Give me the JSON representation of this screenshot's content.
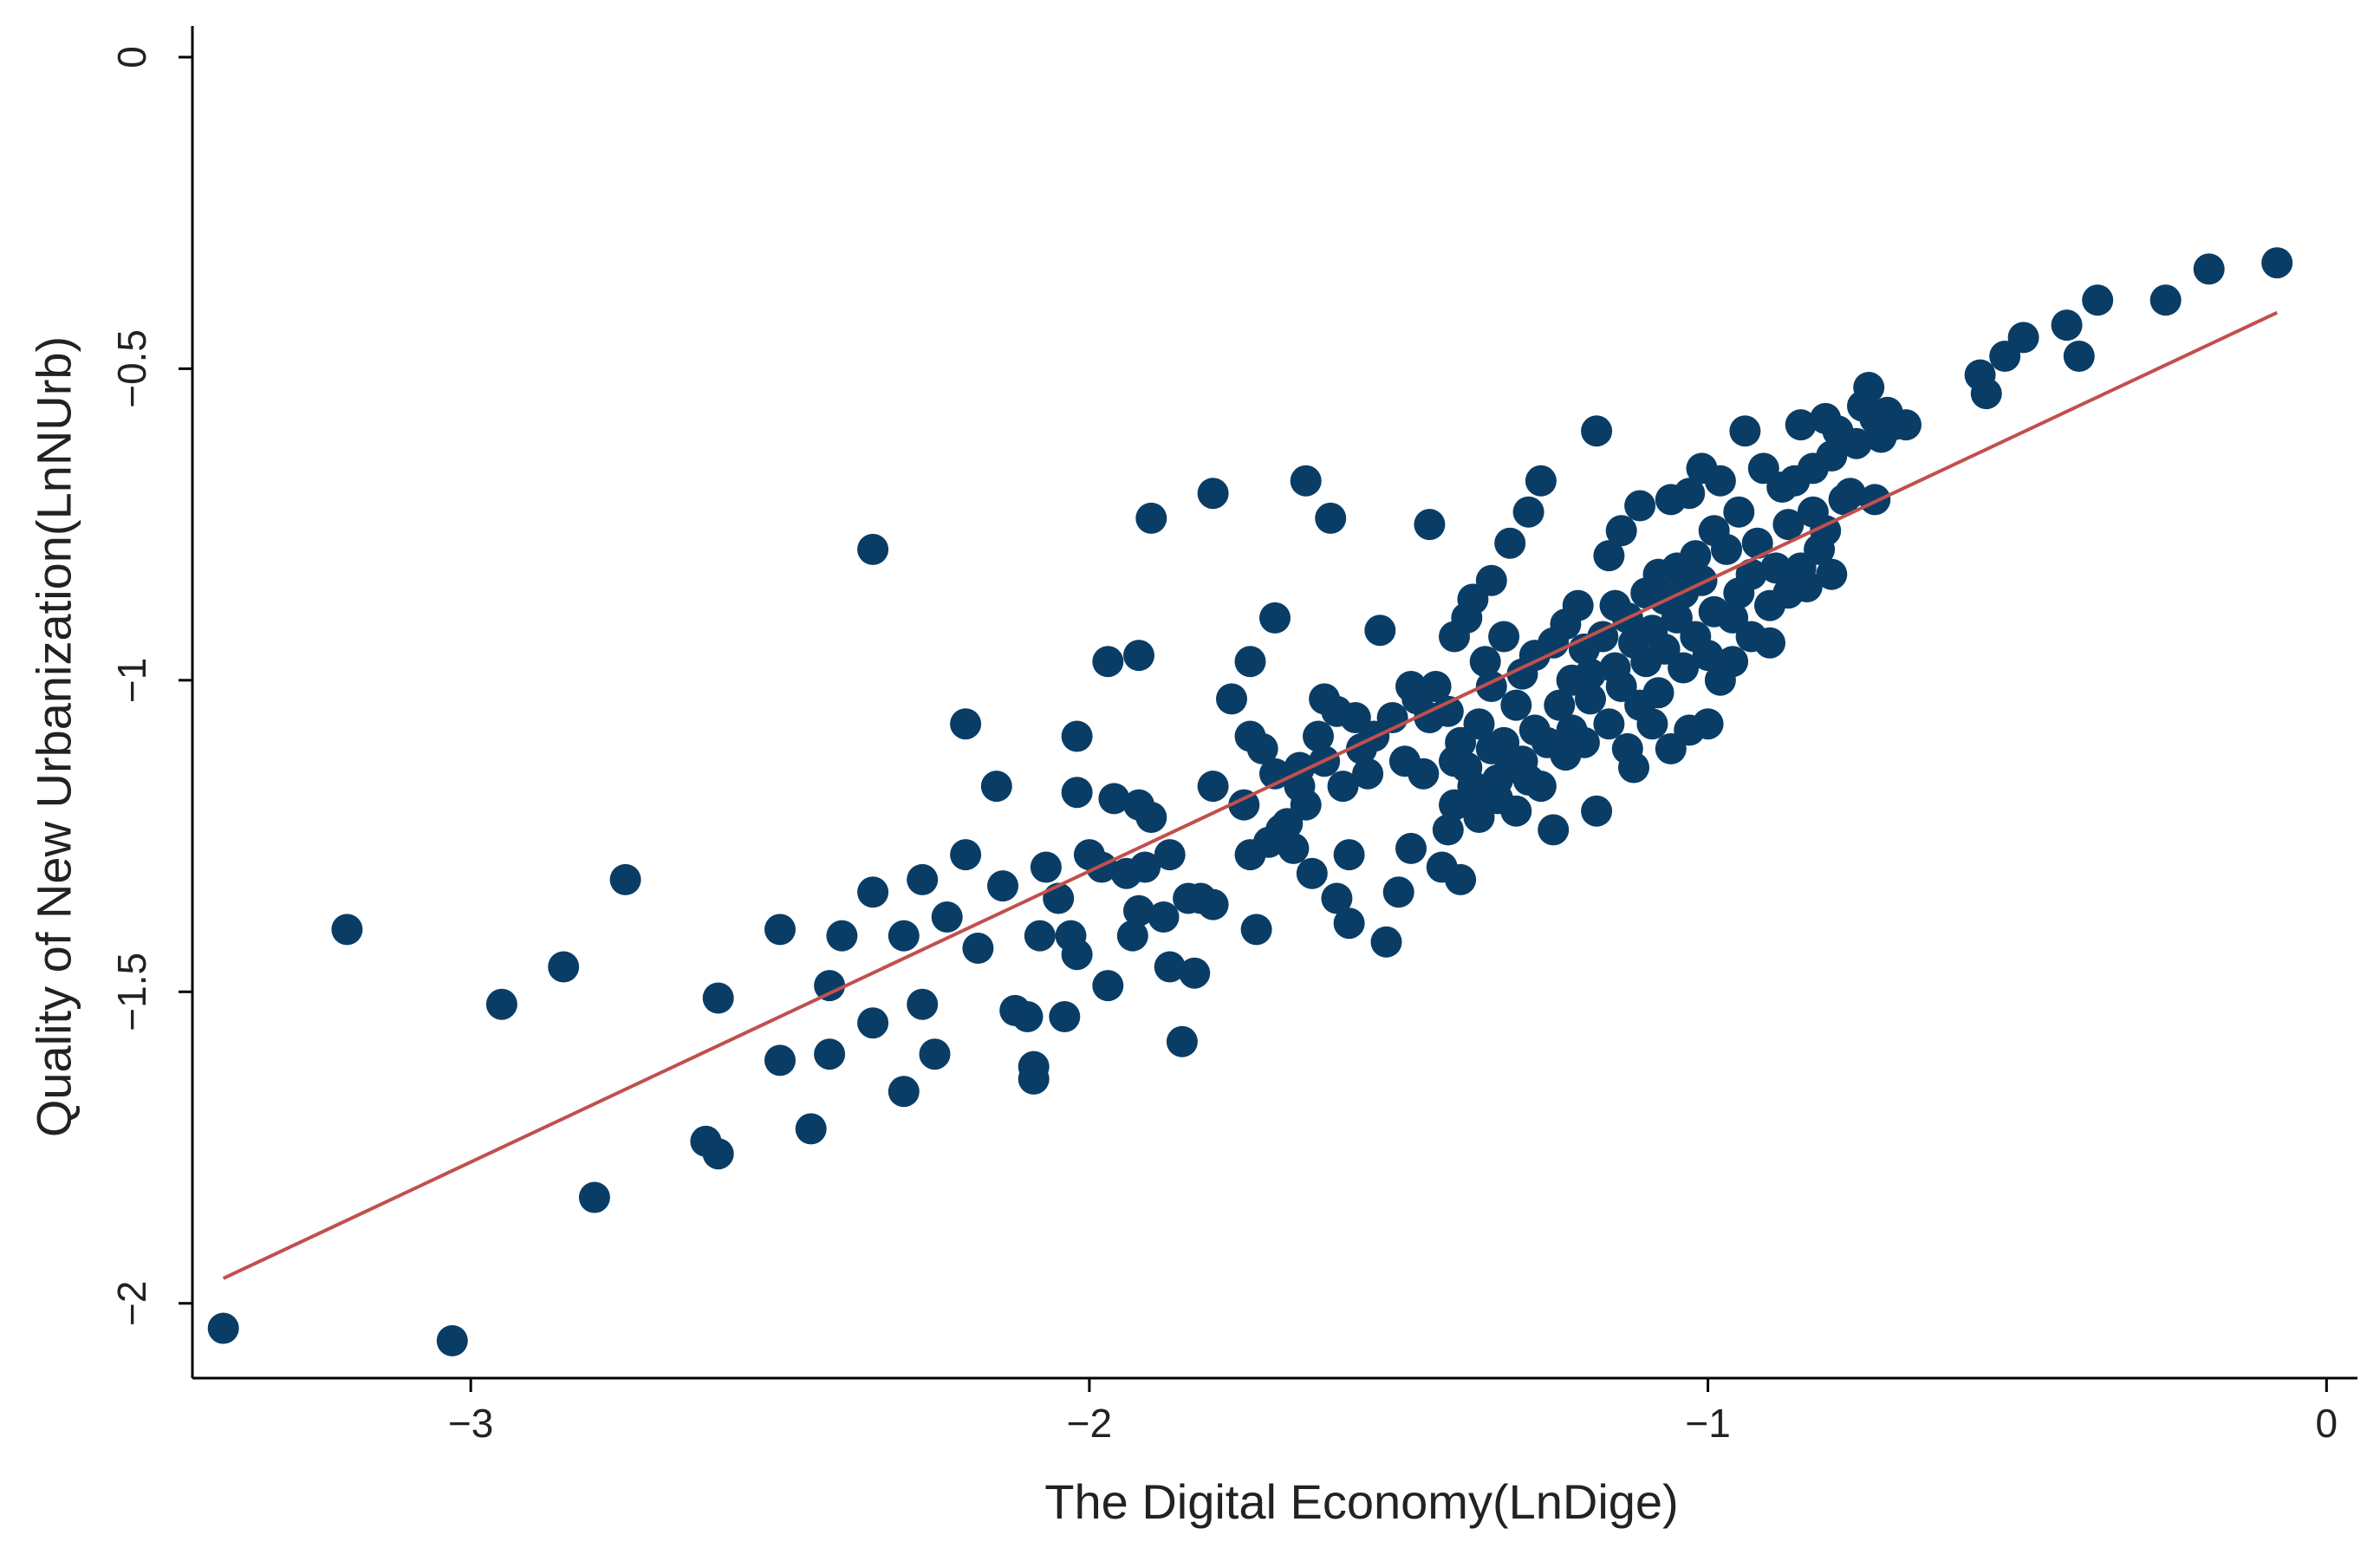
{
  "chart_data": {
    "type": "scatter",
    "title": "",
    "xlabel": "The Digital Economy(LnDige)",
    "ylabel": "Quality of New Urbanization(LnNUrb)",
    "xlim": [
      -3.45,
      0.05
    ],
    "ylim": [
      -2.12,
      0.05
    ],
    "xticks": [
      {
        "value": -3,
        "label": "−3"
      },
      {
        "value": -2,
        "label": "−2"
      },
      {
        "value": -1,
        "label": "−1"
      },
      {
        "value": 0,
        "label": "0"
      }
    ],
    "yticks": [
      {
        "value": 0,
        "label": "0"
      },
      {
        "value": -0.5,
        "label": "−0.5"
      },
      {
        "value": -1,
        "label": "−1"
      },
      {
        "value": -1.5,
        "label": "−1.5"
      },
      {
        "value": -2,
        "label": "−2"
      }
    ],
    "grid": false,
    "legend": "none",
    "colors": {
      "points": "#0a3d66",
      "fit_line": "#c0504d"
    },
    "fit_line": {
      "x": [
        -3.4,
        -0.08
      ],
      "y": [
        -1.96,
        -0.41
      ]
    },
    "series": [
      {
        "points": [
          [
            -3.4,
            -2.04
          ],
          [
            -3.03,
            -2.06
          ],
          [
            -3.2,
            -1.4
          ],
          [
            -2.95,
            -1.52
          ],
          [
            -2.85,
            -1.46
          ],
          [
            -2.8,
            -1.83
          ],
          [
            -2.75,
            -1.32
          ],
          [
            -2.62,
            -1.74
          ],
          [
            -2.6,
            -1.76
          ],
          [
            -2.6,
            -1.51
          ],
          [
            -2.5,
            -1.4
          ],
          [
            -2.5,
            -1.61
          ],
          [
            -2.45,
            -1.72
          ],
          [
            -2.42,
            -1.49
          ],
          [
            -2.42,
            -1.6
          ],
          [
            -2.4,
            -1.41
          ],
          [
            -2.35,
            -0.79
          ],
          [
            -2.35,
            -1.34
          ],
          [
            -2.35,
            -1.55
          ],
          [
            -2.3,
            -1.41
          ],
          [
            -2.3,
            -1.66
          ],
          [
            -2.27,
            -1.32
          ],
          [
            -2.27,
            -1.52
          ],
          [
            -2.25,
            -1.6
          ],
          [
            -2.23,
            -1.38
          ],
          [
            -2.2,
            -1.28
          ],
          [
            -2.2,
            -1.07
          ],
          [
            -2.18,
            -1.43
          ],
          [
            -2.15,
            -1.17
          ],
          [
            -2.14,
            -1.33
          ],
          [
            -2.12,
            -1.53
          ],
          [
            -2.1,
            -1.54
          ],
          [
            -2.09,
            -1.62
          ],
          [
            -2.09,
            -1.64
          ],
          [
            -2.08,
            -1.41
          ],
          [
            -2.07,
            -1.3
          ],
          [
            -2.05,
            -1.35
          ],
          [
            -2.04,
            -1.54
          ],
          [
            -2.03,
            -1.41
          ],
          [
            -2.02,
            -1.44
          ],
          [
            -2.02,
            -1.18
          ],
          [
            -2.02,
            -1.09
          ],
          [
            -2.0,
            -1.28
          ],
          [
            -1.98,
            -1.3
          ],
          [
            -1.97,
            -1.49
          ],
          [
            -1.97,
            -0.97
          ],
          [
            -1.96,
            -1.19
          ],
          [
            -1.94,
            -1.31
          ],
          [
            -1.93,
            -1.41
          ],
          [
            -1.92,
            -1.37
          ],
          [
            -1.92,
            -1.2
          ],
          [
            -1.92,
            -0.96
          ],
          [
            -1.91,
            -1.3
          ],
          [
            -1.9,
            -1.22
          ],
          [
            -1.9,
            -0.74
          ],
          [
            -1.88,
            -1.38
          ],
          [
            -1.87,
            -1.28
          ],
          [
            -1.87,
            -1.46
          ],
          [
            -1.85,
            -1.58
          ],
          [
            -1.84,
            -1.35
          ],
          [
            -1.83,
            -1.47
          ],
          [
            -1.82,
            -1.35
          ],
          [
            -1.8,
            -1.36
          ],
          [
            -1.8,
            -1.17
          ],
          [
            -1.8,
            -0.7
          ],
          [
            -1.77,
            -1.03
          ],
          [
            -1.75,
            -1.2
          ],
          [
            -1.74,
            -1.28
          ],
          [
            -1.74,
            -1.09
          ],
          [
            -1.74,
            -0.97
          ],
          [
            -1.73,
            -1.4
          ],
          [
            -1.72,
            -1.11
          ],
          [
            -1.71,
            -1.26
          ],
          [
            -1.7,
            -1.15
          ],
          [
            -1.7,
            -0.9
          ],
          [
            -1.69,
            -1.24
          ],
          [
            -1.68,
            -1.23
          ],
          [
            -1.67,
            -1.27
          ],
          [
            -1.66,
            -1.17
          ],
          [
            -1.66,
            -1.14
          ],
          [
            -1.65,
            -1.2
          ],
          [
            -1.65,
            -0.68
          ],
          [
            -1.64,
            -1.31
          ],
          [
            -1.63,
            -1.09
          ],
          [
            -1.62,
            -1.03
          ],
          [
            -1.62,
            -1.13
          ],
          [
            -1.61,
            -0.74
          ],
          [
            -1.6,
            -1.35
          ],
          [
            -1.6,
            -1.05
          ],
          [
            -1.59,
            -1.17
          ],
          [
            -1.58,
            -1.39
          ],
          [
            -1.58,
            -1.28
          ],
          [
            -1.57,
            -1.06
          ],
          [
            -1.56,
            -1.11
          ],
          [
            -1.55,
            -1.15
          ],
          [
            -1.54,
            -1.09
          ],
          [
            -1.53,
            -0.92
          ],
          [
            -1.52,
            -1.42
          ],
          [
            -1.51,
            -1.06
          ],
          [
            -1.5,
            -1.34
          ],
          [
            -1.49,
            -1.13
          ],
          [
            -1.48,
            -1.01
          ],
          [
            -1.48,
            -1.27
          ],
          [
            -1.47,
            -1.03
          ],
          [
            -1.46,
            -1.15
          ],
          [
            -1.45,
            -1.06
          ],
          [
            -1.45,
            -0.75
          ],
          [
            -1.44,
            -1.01
          ],
          [
            -1.43,
            -1.3
          ],
          [
            -1.42,
            -1.24
          ],
          [
            -1.42,
            -1.05
          ],
          [
            -1.41,
            -1.13
          ],
          [
            -1.41,
            -1.2
          ],
          [
            -1.41,
            -0.93
          ],
          [
            -1.4,
            -1.32
          ],
          [
            -1.4,
            -1.1
          ],
          [
            -1.39,
            -1.14
          ],
          [
            -1.39,
            -0.9
          ],
          [
            -1.38,
            -1.17
          ],
          [
            -1.38,
            -0.87
          ],
          [
            -1.37,
            -1.07
          ],
          [
            -1.37,
            -1.2
          ],
          [
            -1.37,
            -1.22
          ],
          [
            -1.36,
            -0.97
          ],
          [
            -1.35,
            -1.11
          ],
          [
            -1.35,
            -0.84
          ],
          [
            -1.35,
            -1.01
          ],
          [
            -1.34,
            -1.16
          ],
          [
            -1.34,
            -1.19
          ],
          [
            -1.33,
            -0.93
          ],
          [
            -1.33,
            -1.1
          ],
          [
            -1.32,
            -0.78
          ],
          [
            -1.32,
            -1.14
          ],
          [
            -1.31,
            -1.04
          ],
          [
            -1.31,
            -1.21
          ],
          [
            -1.3,
            -0.99
          ],
          [
            -1.3,
            -1.13
          ],
          [
            -1.29,
            -1.16
          ],
          [
            -1.29,
            -0.73
          ],
          [
            -1.28,
            -1.08
          ],
          [
            -1.28,
            -0.96
          ],
          [
            -1.27,
            -1.17
          ],
          [
            -1.27,
            -0.68
          ],
          [
            -1.26,
            -1.1
          ],
          [
            -1.25,
            -0.94
          ],
          [
            -1.25,
            -1.24
          ],
          [
            -1.24,
            -1.04
          ],
          [
            -1.23,
            -1.12
          ],
          [
            -1.23,
            -0.91
          ],
          [
            -1.22,
            -1.0
          ],
          [
            -1.22,
            -1.08
          ],
          [
            -1.21,
            -0.88
          ],
          [
            -1.2,
            -0.95
          ],
          [
            -1.2,
            -1.1
          ],
          [
            -1.19,
            -1.03
          ],
          [
            -1.19,
            -0.99
          ],
          [
            -1.18,
            -0.6
          ],
          [
            -1.18,
            -1.21
          ],
          [
            -1.17,
            -0.93
          ],
          [
            -1.16,
            -0.8
          ],
          [
            -1.16,
            -1.07
          ],
          [
            -1.15,
            -0.88
          ],
          [
            -1.15,
            -0.98
          ],
          [
            -1.14,
            -0.76
          ],
          [
            -1.14,
            -1.01
          ],
          [
            -1.13,
            -0.9
          ],
          [
            -1.13,
            -1.11
          ],
          [
            -1.12,
            -0.94
          ],
          [
            -1.12,
            -1.14
          ],
          [
            -1.11,
            -0.72
          ],
          [
            -1.11,
            -1.04
          ],
          [
            -1.1,
            -0.86
          ],
          [
            -1.1,
            -0.97
          ],
          [
            -1.09,
            -0.92
          ],
          [
            -1.09,
            -1.07
          ],
          [
            -1.08,
            -0.83
          ],
          [
            -1.08,
            -1.02
          ],
          [
            -1.07,
            -0.87
          ],
          [
            -1.07,
            -0.95
          ],
          [
            -1.06,
            -0.71
          ],
          [
            -1.06,
            -1.11
          ],
          [
            -1.05,
            -0.82
          ],
          [
            -1.05,
            -0.9
          ],
          [
            -1.04,
            -0.98
          ],
          [
            -1.04,
            -0.86
          ],
          [
            -1.03,
            -0.7
          ],
          [
            -1.03,
            -1.08
          ],
          [
            -1.02,
            -0.8
          ],
          [
            -1.02,
            -0.93
          ],
          [
            -1.01,
            -0.66
          ],
          [
            -1.01,
            -0.84
          ],
          [
            -1.0,
            -0.96
          ],
          [
            -1.0,
            -1.07
          ],
          [
            -0.99,
            -0.76
          ],
          [
            -0.99,
            -0.89
          ],
          [
            -0.98,
            -0.68
          ],
          [
            -0.98,
            -1.0
          ],
          [
            -0.97,
            -0.79
          ],
          [
            -0.96,
            -0.9
          ],
          [
            -0.96,
            -0.97
          ],
          [
            -0.95,
            -0.73
          ],
          [
            -0.95,
            -0.86
          ],
          [
            -0.94,
            -0.6
          ],
          [
            -0.93,
            -0.83
          ],
          [
            -0.93,
            -0.93
          ],
          [
            -0.92,
            -0.78
          ],
          [
            -0.91,
            -0.66
          ],
          [
            -0.9,
            -0.88
          ],
          [
            -0.9,
            -0.94
          ],
          [
            -0.89,
            -0.82
          ],
          [
            -0.88,
            -0.69
          ],
          [
            -0.87,
            -0.86
          ],
          [
            -0.87,
            -0.75
          ],
          [
            -0.86,
            -0.68
          ],
          [
            -0.85,
            -0.82
          ],
          [
            -0.85,
            -0.59
          ],
          [
            -0.84,
            -0.85
          ],
          [
            -0.83,
            -0.66
          ],
          [
            -0.83,
            -0.73
          ],
          [
            -0.82,
            -0.79
          ],
          [
            -0.81,
            -0.58
          ],
          [
            -0.81,
            -0.76
          ],
          [
            -0.8,
            -0.64
          ],
          [
            -0.8,
            -0.83
          ],
          [
            -0.79,
            -0.6
          ],
          [
            -0.78,
            -0.71
          ],
          [
            -0.77,
            -0.7
          ],
          [
            -0.76,
            -0.62
          ],
          [
            -0.75,
            -0.56
          ],
          [
            -0.74,
            -0.53
          ],
          [
            -0.73,
            -0.58
          ],
          [
            -0.73,
            -0.71
          ],
          [
            -0.72,
            -0.61
          ],
          [
            -0.71,
            -0.57
          ],
          [
            -0.7,
            -0.59
          ],
          [
            -0.68,
            -0.59
          ],
          [
            -0.56,
            -0.51
          ],
          [
            -0.55,
            -0.54
          ],
          [
            -0.52,
            -0.48
          ],
          [
            -0.49,
            -0.45
          ],
          [
            -0.42,
            -0.43
          ],
          [
            -0.4,
            -0.48
          ],
          [
            -0.37,
            -0.39
          ],
          [
            -0.26,
            -0.39
          ],
          [
            -0.19,
            -0.34
          ],
          [
            -0.08,
            -0.33
          ]
        ]
      }
    ]
  }
}
